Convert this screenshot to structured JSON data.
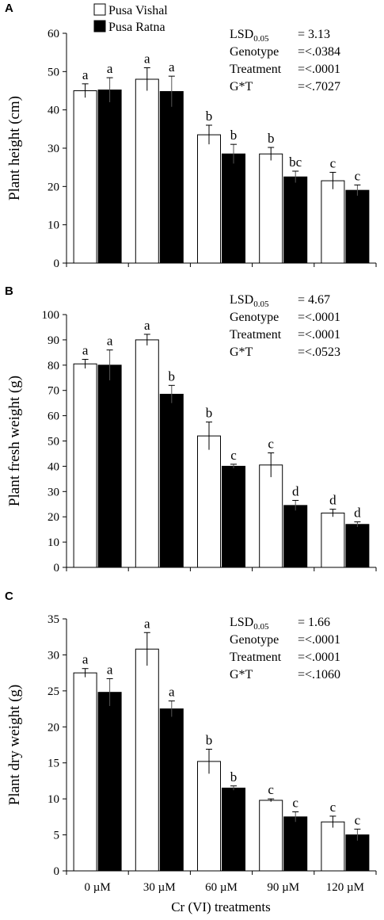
{
  "legend": [
    {
      "label": "Pusa Vishal",
      "color": "#ffffff"
    },
    {
      "label": "Pusa Ratna",
      "color": "#000000"
    }
  ],
  "xlabel": "Cr (VI) treatments",
  "chart_data": [
    {
      "type": "bar",
      "panel": "A",
      "categories": [
        "0 µM",
        "30 µM",
        "60 µM",
        "90 µM",
        "120 µM"
      ],
      "ylabel": "Plant height (cm)",
      "ylim": [
        0,
        60
      ],
      "yticks": [
        0,
        10,
        20,
        30,
        40,
        50,
        60
      ],
      "series": [
        {
          "name": "Pusa Vishal",
          "values": [
            45,
            48,
            33.5,
            28.5,
            21.5
          ],
          "errors": [
            1.8,
            3,
            2.5,
            1.7,
            2.2
          ],
          "letters": [
            "a",
            "a",
            "b",
            "b",
            "c"
          ]
        },
        {
          "name": "Pusa Ratna",
          "values": [
            45.2,
            44.8,
            28.5,
            22.5,
            19
          ],
          "errors": [
            3.2,
            4,
            2.5,
            1.5,
            1.4
          ],
          "letters": [
            "a",
            "a",
            "b",
            "bc",
            "c"
          ]
        }
      ],
      "stats": [
        {
          "label": "LSD",
          "sub": "0.05",
          "value": "= 3.13"
        },
        {
          "label": "Genotype",
          "value": "=<.0384"
        },
        {
          "label": "Treatment",
          "value": "=<.0001"
        },
        {
          "label": "G*T",
          "value": "=<.7027"
        }
      ]
    },
    {
      "type": "bar",
      "panel": "B",
      "categories": [
        "0 µM",
        "30 µM",
        "60 µM",
        "90 µM",
        "120 µM"
      ],
      "ylabel": "Plant fresh weight (g)",
      "ylim": [
        0,
        100
      ],
      "yticks": [
        0,
        10,
        20,
        30,
        40,
        50,
        60,
        70,
        80,
        90,
        100
      ],
      "series": [
        {
          "name": "Pusa Vishal",
          "values": [
            80.5,
            90,
            52,
            40.5,
            21.5
          ],
          "errors": [
            1.8,
            2.2,
            5.5,
            4.8,
            1.5
          ],
          "letters": [
            "a",
            "a",
            "b",
            "c",
            "d"
          ]
        },
        {
          "name": "Pusa Ratna",
          "values": [
            80,
            68.5,
            40,
            24.5,
            17
          ],
          "errors": [
            6,
            3.5,
            0.8,
            2,
            1
          ],
          "letters": [
            "a",
            "b",
            "c",
            "d",
            "d"
          ]
        }
      ],
      "stats": [
        {
          "label": "LSD",
          "sub": "0.05",
          "value": "= 4.67"
        },
        {
          "label": "Genotype",
          "value": "=<.0001"
        },
        {
          "label": "Treatment",
          "value": "=<.0001"
        },
        {
          "label": "G*T",
          "value": "=<.0523"
        }
      ]
    },
    {
      "type": "bar",
      "panel": "C",
      "categories": [
        "0 µM",
        "30 µM",
        "60 µM",
        "90 µM",
        "120 µM"
      ],
      "ylabel": "Plant dry weight (g)",
      "ylim": [
        0,
        35
      ],
      "yticks": [
        0,
        5,
        10,
        15,
        20,
        25,
        30,
        35
      ],
      "series": [
        {
          "name": "Pusa Vishal",
          "values": [
            27.5,
            30.8,
            15.2,
            9.8,
            6.8
          ],
          "errors": [
            0.6,
            2.3,
            1.7,
            0.2,
            0.8
          ],
          "letters": [
            "a",
            "a",
            "b",
            "c",
            "c"
          ]
        },
        {
          "name": "Pusa Ratna",
          "values": [
            24.8,
            22.5,
            11.5,
            7.5,
            5
          ],
          "errors": [
            1.9,
            1.1,
            0.3,
            0.7,
            0.8
          ],
          "letters": [
            "a",
            "a",
            "b",
            "c",
            "c"
          ]
        }
      ],
      "stats": [
        {
          "label": "LSD",
          "sub": "0.05",
          "value": "= 1.66"
        },
        {
          "label": "Genotype",
          "value": "=<.0001"
        },
        {
          "label": "Treatment",
          "value": "=<.0001"
        },
        {
          "label": "G*T",
          "value": "=<.1060"
        }
      ]
    }
  ]
}
